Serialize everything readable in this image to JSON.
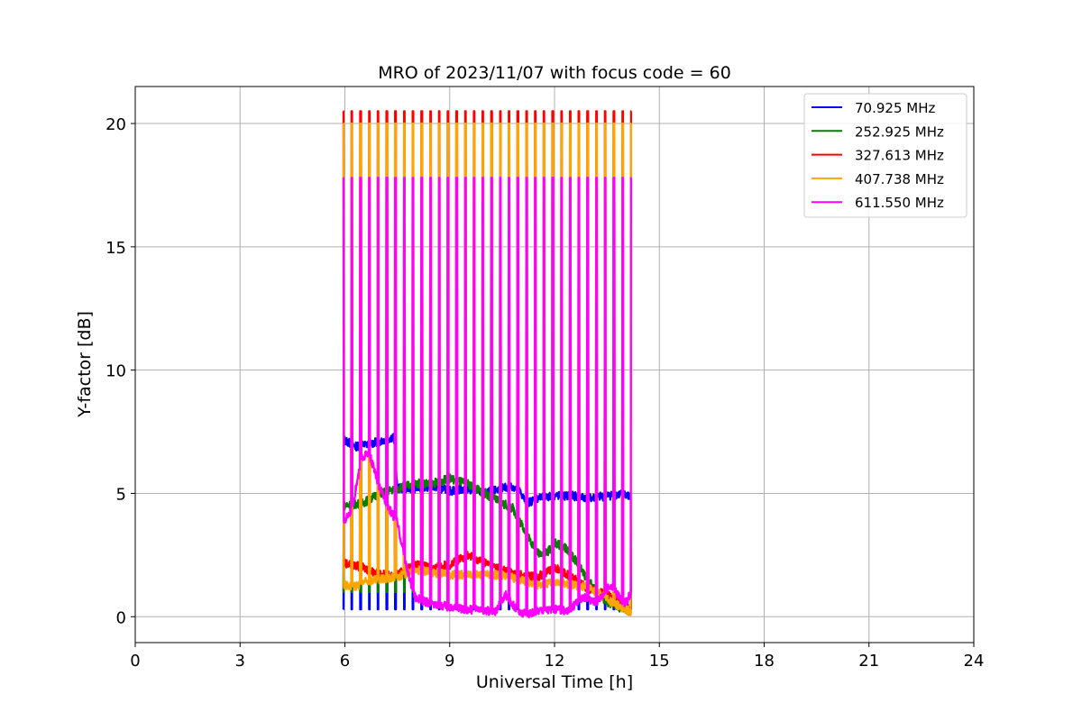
{
  "chart_data": {
    "type": "line",
    "title": "MRO of 2023/11/07 with focus code = 60",
    "xlabel": "Universal Time [h]",
    "ylabel": "Y-factor [dB]",
    "xlim": [
      0,
      24
    ],
    "ylim": [
      -1.05,
      21.5
    ],
    "xticks": [
      0,
      3,
      6,
      9,
      12,
      15,
      18,
      21,
      24
    ],
    "xtick_labels": [
      "0",
      "3",
      "6",
      "9",
      "12",
      "15",
      "18",
      "21",
      "24"
    ],
    "yticks": [
      0,
      5,
      10,
      15,
      20
    ],
    "ytick_labels": [
      "0",
      "5",
      "10",
      "15",
      "20"
    ],
    "grid": true,
    "legend_position": "top-right",
    "calibration_spikes": {
      "start_h": 5.95,
      "end_h": 14.2,
      "count": 34
    },
    "series": [
      {
        "name": " 70.925 MHz",
        "color": "#0000ff",
        "spike_top": 0.3,
        "baseline": [
          [
            5.95,
            7.2
          ],
          [
            6.3,
            6.9
          ],
          [
            6.7,
            7.0
          ],
          [
            7.2,
            7.2
          ],
          [
            7.4,
            7.3
          ],
          [
            7.5,
            5.2
          ],
          [
            8.0,
            5.2
          ],
          [
            8.5,
            5.3
          ],
          [
            9.0,
            5.1
          ],
          [
            9.5,
            5.2
          ],
          [
            10.0,
            5.0
          ],
          [
            10.5,
            5.2
          ],
          [
            10.8,
            5.3
          ],
          [
            11.0,
            5.1
          ],
          [
            11.2,
            4.6
          ],
          [
            11.5,
            4.8
          ],
          [
            12.0,
            4.9
          ],
          [
            12.5,
            4.9
          ],
          [
            13.0,
            4.8
          ],
          [
            13.5,
            4.9
          ],
          [
            14.0,
            5.0
          ],
          [
            14.2,
            4.8
          ]
        ]
      },
      {
        "name": " 252.925 MHz",
        "color": "#007f00",
        "spike_top": 1.0,
        "baseline": [
          [
            5.95,
            4.5
          ],
          [
            6.5,
            4.6
          ],
          [
            7.0,
            5.0
          ],
          [
            7.5,
            5.2
          ],
          [
            8.0,
            5.4
          ],
          [
            8.5,
            5.4
          ],
          [
            9.0,
            5.6
          ],
          [
            9.5,
            5.4
          ],
          [
            10.0,
            5.0
          ],
          [
            10.5,
            4.6
          ],
          [
            10.8,
            4.4
          ],
          [
            11.0,
            3.9
          ],
          [
            11.5,
            2.6
          ],
          [
            11.8,
            2.6
          ],
          [
            12.0,
            3.0
          ],
          [
            12.3,
            2.8
          ],
          [
            12.6,
            2.3
          ],
          [
            12.9,
            1.6
          ],
          [
            13.2,
            1.0
          ],
          [
            13.5,
            0.6
          ],
          [
            13.8,
            0.4
          ],
          [
            14.2,
            0.2
          ]
        ]
      },
      {
        "name": " 327.613 MHz",
        "color": "#ff0000",
        "spike_top": 20.5,
        "baseline": [
          [
            5.95,
            2.2
          ],
          [
            6.5,
            2.0
          ],
          [
            7.0,
            1.7
          ],
          [
            7.5,
            1.7
          ],
          [
            8.0,
            2.1
          ],
          [
            8.5,
            2.0
          ],
          [
            9.0,
            2.1
          ],
          [
            9.5,
            2.5
          ],
          [
            10.0,
            2.2
          ],
          [
            10.5,
            1.9
          ],
          [
            11.0,
            1.7
          ],
          [
            11.5,
            1.6
          ],
          [
            12.0,
            2.0
          ],
          [
            12.5,
            1.6
          ],
          [
            13.0,
            1.1
          ],
          [
            13.5,
            0.9
          ],
          [
            14.0,
            0.5
          ],
          [
            14.2,
            0.2
          ]
        ]
      },
      {
        "name": " 407.738 MHz",
        "color": "#ffa500",
        "spike_top": 20.0,
        "baseline": [
          [
            5.95,
            1.3
          ],
          [
            6.3,
            1.2
          ],
          [
            6.5,
            1.4
          ],
          [
            7.0,
            1.5
          ],
          [
            7.5,
            1.6
          ],
          [
            8.0,
            1.9
          ],
          [
            8.5,
            1.8
          ],
          [
            9.0,
            1.7
          ],
          [
            9.5,
            1.7
          ],
          [
            10.0,
            1.7
          ],
          [
            10.5,
            1.7
          ],
          [
            11.0,
            1.5
          ],
          [
            11.5,
            1.3
          ],
          [
            12.0,
            1.4
          ],
          [
            12.5,
            1.3
          ],
          [
            13.0,
            1.2
          ],
          [
            13.5,
            0.7
          ],
          [
            14.0,
            0.3
          ],
          [
            14.2,
            0.2
          ]
        ]
      },
      {
        "name": " 611.550 MHz",
        "color": "#ff00ff",
        "spike_top": 17.8,
        "baseline": [
          [
            5.95,
            3.8
          ],
          [
            6.2,
            4.4
          ],
          [
            6.5,
            6.5
          ],
          [
            6.7,
            6.6
          ],
          [
            7.0,
            5.2
          ],
          [
            7.3,
            4.3
          ],
          [
            7.5,
            3.8
          ],
          [
            7.8,
            1.8
          ],
          [
            8.0,
            0.8
          ],
          [
            8.3,
            0.6
          ],
          [
            8.6,
            0.5
          ],
          [
            9.0,
            0.4
          ],
          [
            9.5,
            0.3
          ],
          [
            10.0,
            0.25
          ],
          [
            10.3,
            0.2
          ],
          [
            10.6,
            0.9
          ],
          [
            11.0,
            0.15
          ],
          [
            11.3,
            0.1
          ],
          [
            11.6,
            0.3
          ],
          [
            12.0,
            0.3
          ],
          [
            12.4,
            0.25
          ],
          [
            12.8,
            0.8
          ],
          [
            13.2,
            0.6
          ],
          [
            13.6,
            1.3
          ],
          [
            14.0,
            0.5
          ],
          [
            14.2,
            1.0
          ]
        ]
      }
    ]
  }
}
